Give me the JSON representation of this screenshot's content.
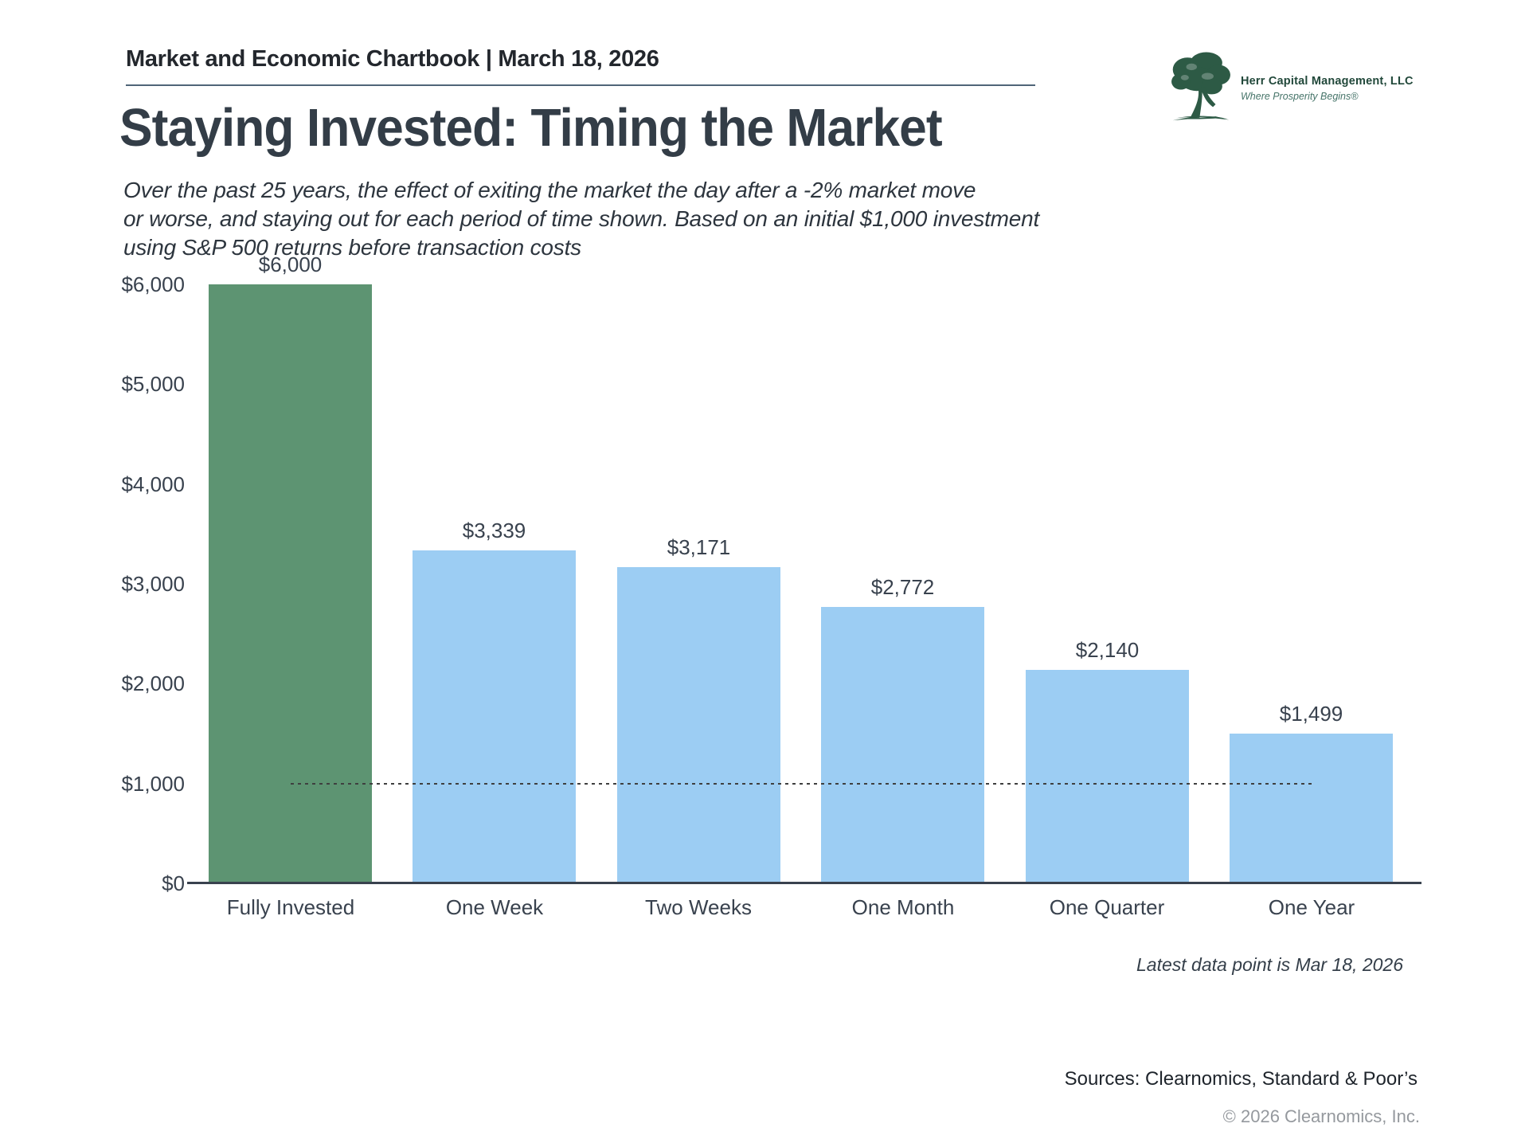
{
  "header": {
    "chartbook_label": "Market and Economic Chartbook | March 18, 2026",
    "logo": {
      "company": "Herr Capital Management, LLC",
      "tagline": "Where Prosperity Begins®"
    }
  },
  "title": "Staying Invested: Timing the Market",
  "subtitle_lines": [
    "Over the past 25 years, the effect of exiting the market the day after a -2% market move",
    "or worse, and staying out for each period of time shown. Based on an initial $1,000 investment",
    "using S&P 500 returns before transaction costs"
  ],
  "chart_data": {
    "type": "bar",
    "title": "",
    "xlabel": "",
    "ylabel": "",
    "categories": [
      "Fully Invested",
      "One Week",
      "Two Weeks",
      "One Month",
      "One Quarter",
      "One Year"
    ],
    "values": [
      6000,
      3339,
      3171,
      2772,
      2140,
      1499
    ],
    "value_labels": [
      "$6,000",
      "$3,339",
      "$3,171",
      "$2,772",
      "$2,140",
      "$1,499"
    ],
    "bar_colors": [
      "#5d9472",
      "#9ccdf3",
      "#9ccdf3",
      "#9ccdf3",
      "#9ccdf3",
      "#9ccdf3"
    ],
    "ylim": [
      0,
      6000
    ],
    "ytick_values": [
      0,
      1000,
      2000,
      3000,
      4000,
      5000,
      6000
    ],
    "ytick_labels": [
      "$0",
      "$1,000",
      "$2,000",
      "$3,000",
      "$4,000",
      "$5,000",
      "$6,000"
    ],
    "reference_line": {
      "value": 1000,
      "style": "dotted"
    },
    "grid": false,
    "legend": null
  },
  "footer": {
    "latest_note": "Latest data point is Mar 18, 2026",
    "sources": "Sources: Clearnomics, Standard & Poor’s",
    "copyright": "© 2026 Clearnomics, Inc."
  },
  "colors": {
    "green_bar": "#5d9472",
    "blue_bar": "#9ccdf3",
    "axis_text": "#39424e",
    "title_text": "#333d47",
    "header_rule": "#4f6578",
    "logo_green": "#2d5a45",
    "brand_text": "#21483a",
    "tagline_text": "#47756a",
    "copyright_text": "#95999e"
  }
}
